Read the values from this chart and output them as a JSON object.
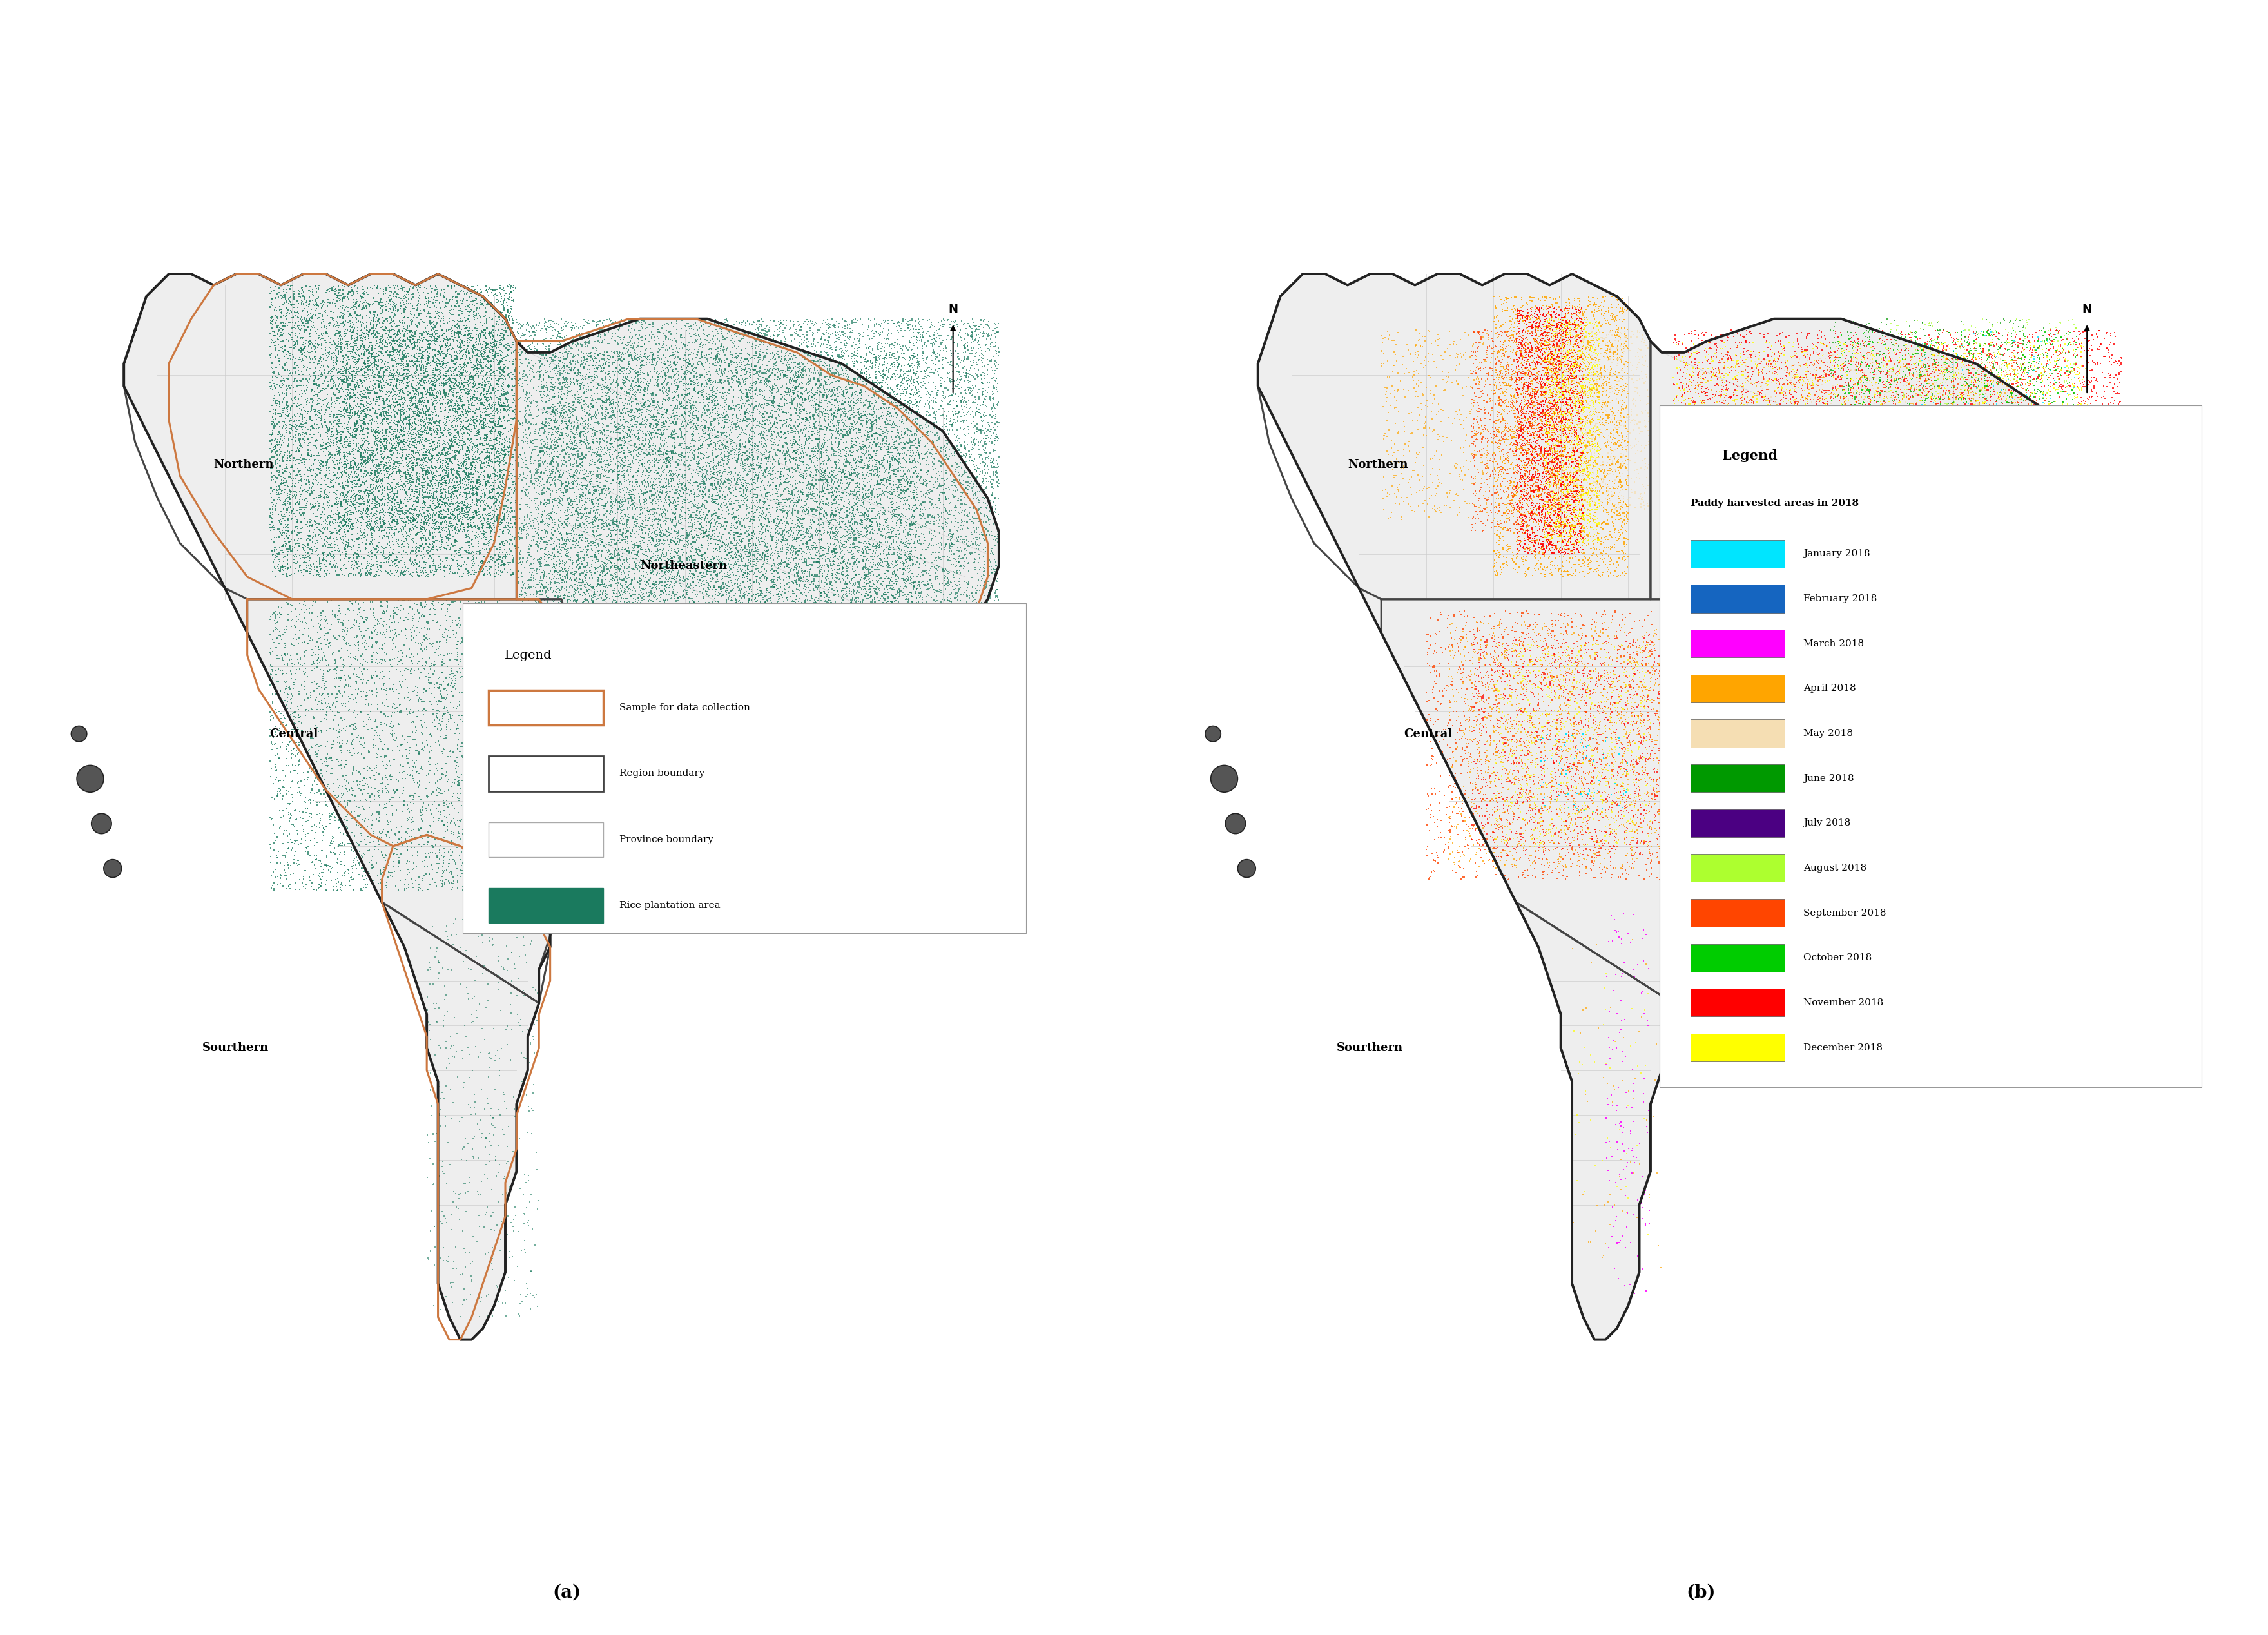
{
  "figure_width": 35.19,
  "figure_height": 25.37,
  "background_color": "#ffffff",
  "panel_a_label": "(a)",
  "panel_b_label": "(b)",
  "legend_a": {
    "title": "Legend",
    "items": [
      {
        "label": "Sample for data collection",
        "facecolor": "#ffffff",
        "edgecolor": "#CD7840",
        "linewidth": 2.5
      },
      {
        "label": "Region boundary",
        "facecolor": "#ffffff",
        "edgecolor": "#444444",
        "linewidth": 2.0
      },
      {
        "label": "Province boundary",
        "facecolor": "#ffffff",
        "edgecolor": "#aaaaaa",
        "linewidth": 1.0
      },
      {
        "label": "Rice plantation area",
        "facecolor": "#1a7a5e",
        "edgecolor": "#1a7a5e",
        "linewidth": 1
      }
    ]
  },
  "legend_b": {
    "title": "Legend",
    "subtitle": "Paddy harvested areas in 2018",
    "items": [
      {
        "label": "January 2018",
        "color": "#00E5FF"
      },
      {
        "label": "February 2018",
        "color": "#1565C0"
      },
      {
        "label": "March 2018",
        "color": "#FF00FF"
      },
      {
        "label": "April 2018",
        "color": "#FFA500"
      },
      {
        "label": "May 2018",
        "color": "#F5DEB3"
      },
      {
        "label": "June 2018",
        "color": "#009900"
      },
      {
        "label": "July 2018",
        "color": "#4B0082"
      },
      {
        "label": "August 2018",
        "color": "#ADFF2F"
      },
      {
        "label": "September 2018",
        "color": "#FF4500"
      },
      {
        "label": "October 2018",
        "color": "#00CC00"
      },
      {
        "label": "November 2018",
        "color": "#FF0000"
      },
      {
        "label": "December 2018",
        "color": "#FFFF00"
      }
    ]
  },
  "thailand_fill": "#eeeeee",
  "thailand_outline": "#222222",
  "province_line_color": "#cccccc",
  "region_line_color": "#444444",
  "sample_line_color": "#CD7840",
  "rice_color": "#1a7a5e"
}
